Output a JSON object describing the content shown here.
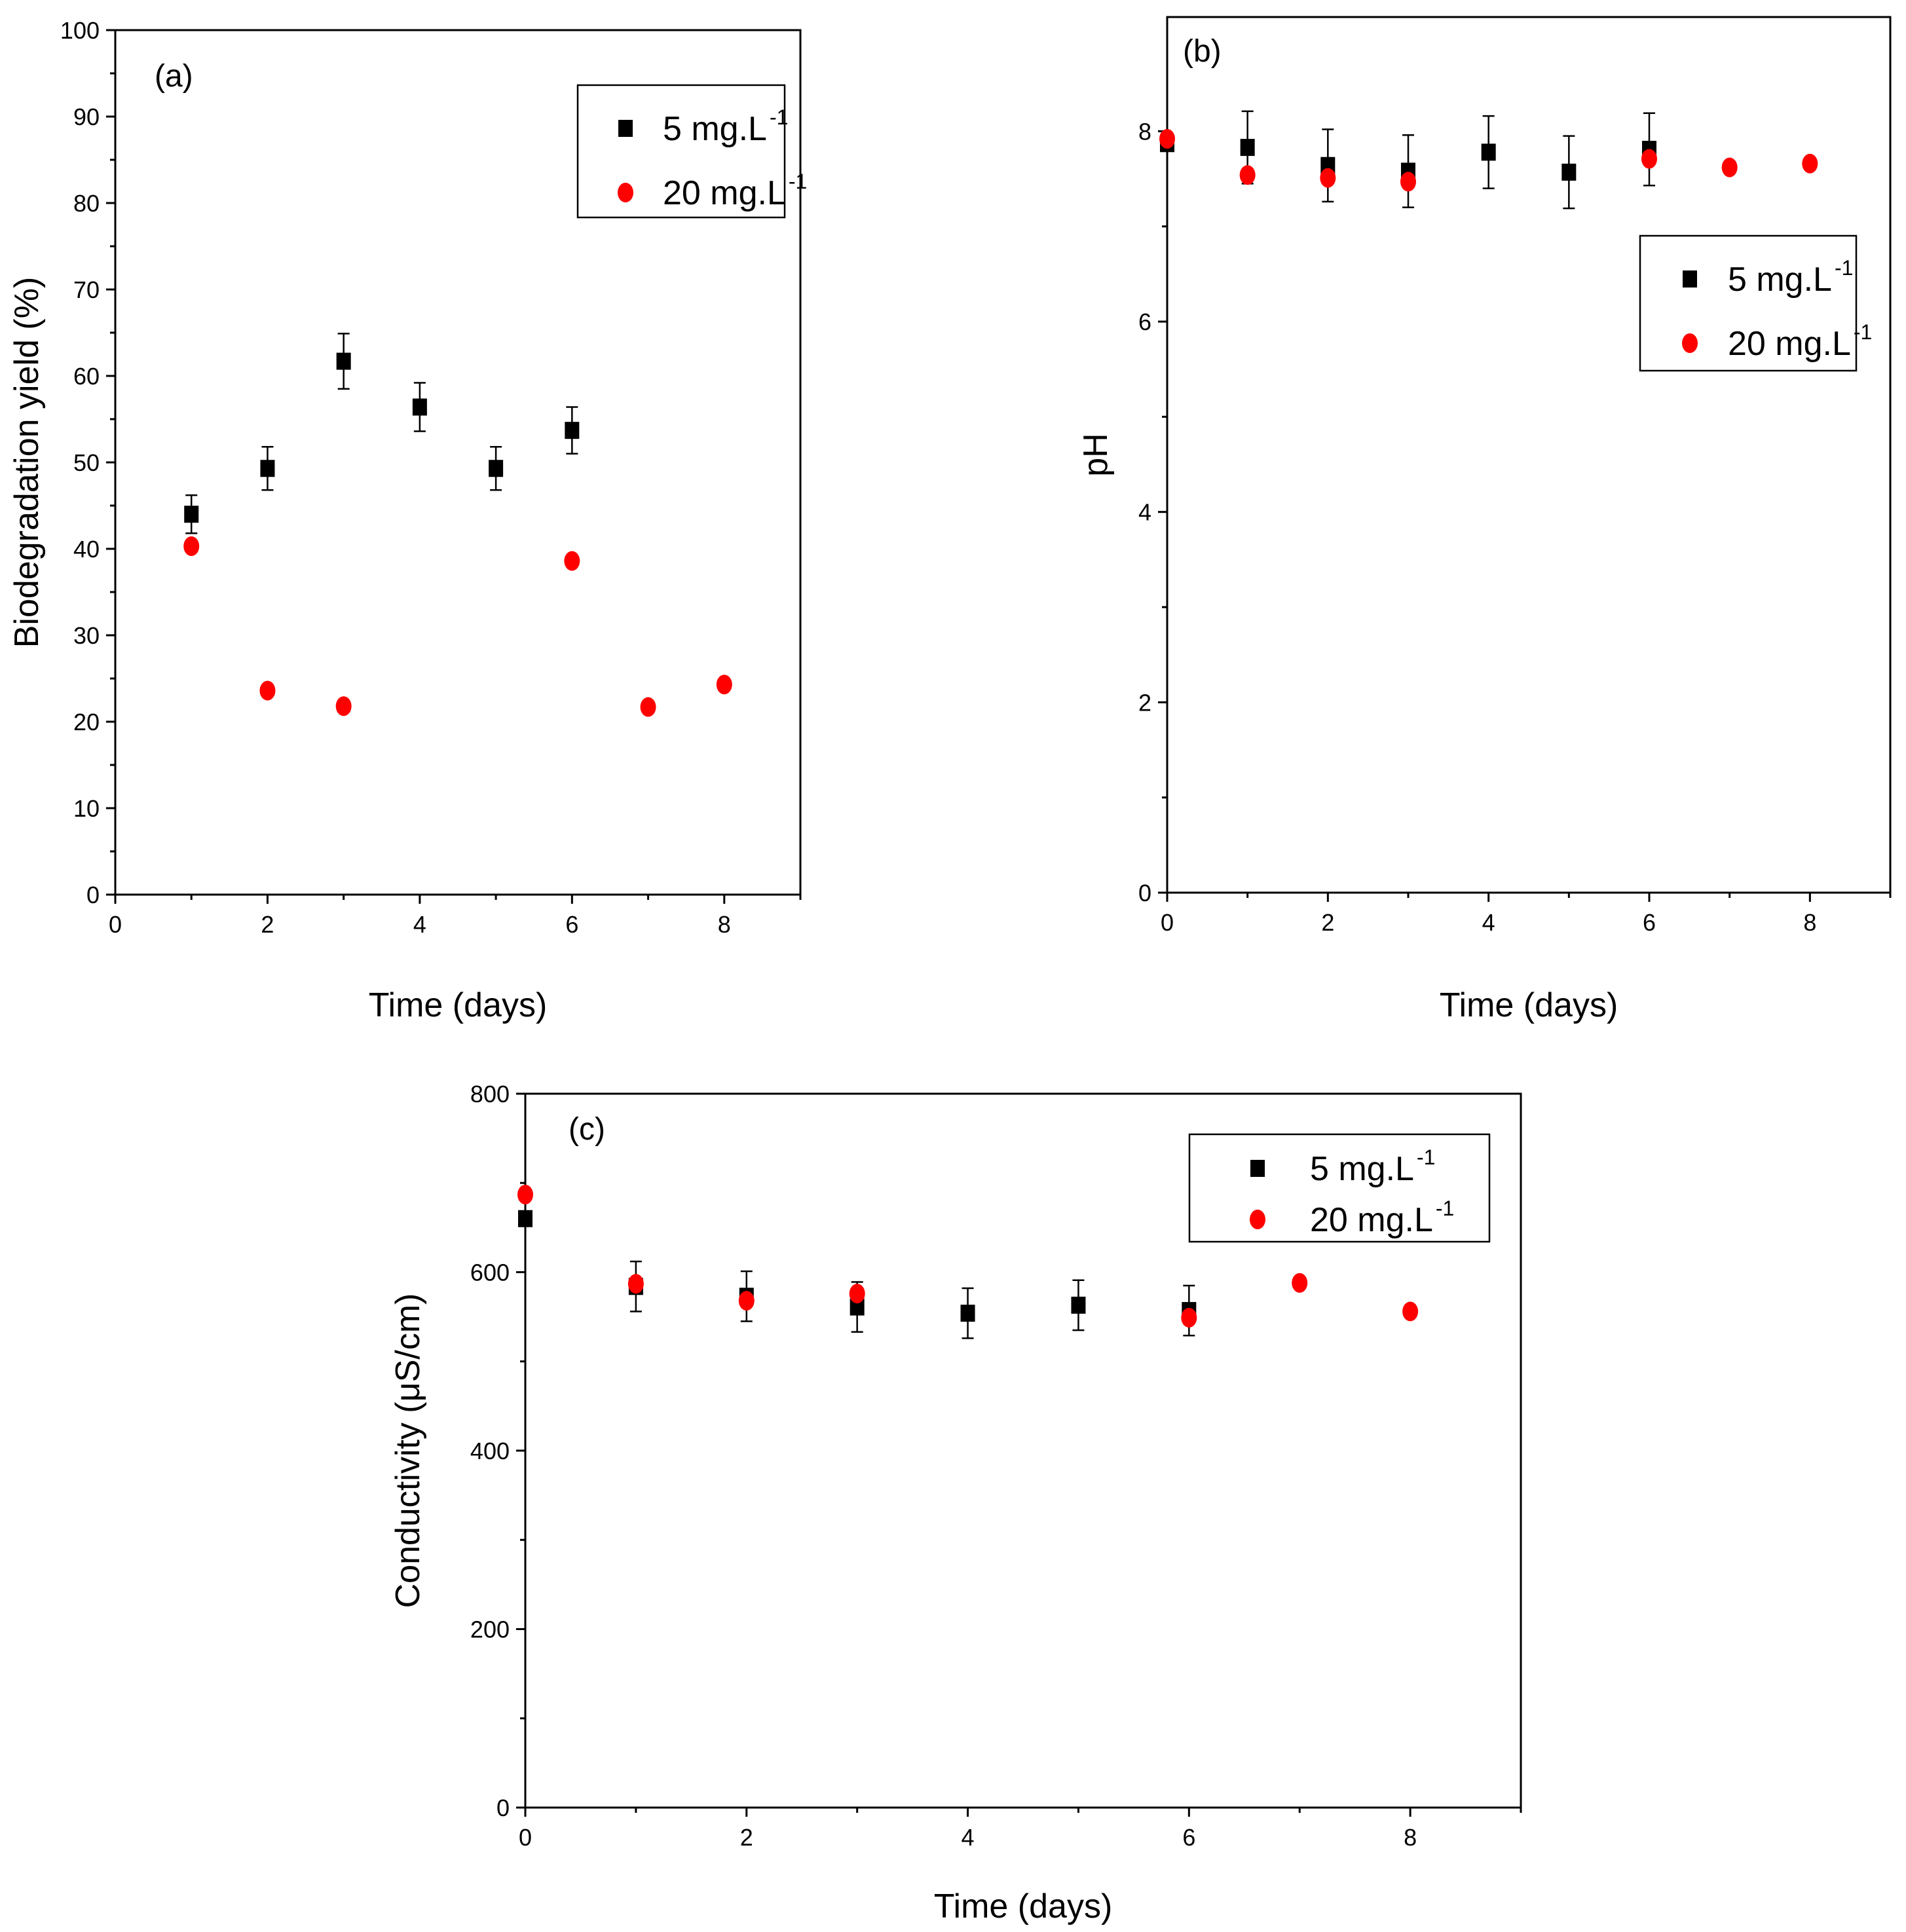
{
  "colors": {
    "series_square": "#000000",
    "series_circle": "#ff0000",
    "axis": "#000000",
    "background": "#ffffff"
  },
  "chart_data": [
    {
      "id": "a",
      "type": "scatter",
      "panel_label": "(a)",
      "xlabel": "Time (days)",
      "ylabel": "Biodegradation yield (%)",
      "xlim": [
        0,
        9
      ],
      "ylim": [
        0,
        100
      ],
      "xticks": [
        0,
        2,
        4,
        6,
        8
      ],
      "yticks": [
        0,
        10,
        20,
        30,
        40,
        50,
        60,
        70,
        80,
        90,
        100
      ],
      "legend_position": "top-right",
      "series": [
        {
          "name": "5 mg.L",
          "sup": "-1",
          "marker": "square",
          "x": [
            1,
            2,
            3,
            4,
            5,
            6
          ],
          "y": [
            44,
            49.3,
            61.7,
            56.4,
            49.3,
            53.7
          ],
          "err": [
            2.2,
            2.5,
            3.2,
            2.8,
            2.5,
            2.7
          ]
        },
        {
          "name": "20 mg.L",
          "sup": "-1",
          "marker": "circle",
          "x": [
            1,
            2,
            3,
            6,
            7,
            8
          ],
          "y": [
            40.3,
            23.6,
            21.8,
            38.6,
            21.7,
            24.3
          ],
          "err": [
            0,
            0,
            0,
            0,
            0,
            0
          ]
        }
      ]
    },
    {
      "id": "b",
      "type": "scatter",
      "panel_label": "(b)",
      "xlabel": "Time (days)",
      "ylabel": "pH",
      "xlim": [
        0,
        9
      ],
      "ylim": [
        0,
        9.2
      ],
      "xticks": [
        0,
        2,
        4,
        6,
        8
      ],
      "yticks": [
        0,
        2,
        4,
        6,
        8
      ],
      "legend_position": "upper-right",
      "series": [
        {
          "name": "5 mg.L",
          "sup": "-1",
          "marker": "square",
          "x": [
            0,
            1,
            2,
            3,
            4,
            5,
            6
          ],
          "y": [
            7.87,
            7.83,
            7.64,
            7.58,
            7.78,
            7.57,
            7.81
          ],
          "err": [
            0,
            0.38,
            0.38,
            0.38,
            0.38,
            0.38,
            0.38
          ]
        },
        {
          "name": "20 mg.L",
          "sup": "-1",
          "marker": "circle",
          "x": [
            0,
            1,
            2,
            3,
            6,
            7,
            8
          ],
          "y": [
            7.92,
            7.54,
            7.51,
            7.47,
            7.71,
            7.62,
            7.66
          ],
          "err": [
            0,
            0,
            0,
            0,
            0,
            0,
            0
          ]
        }
      ]
    },
    {
      "id": "c",
      "type": "scatter",
      "panel_label": "(c)",
      "xlabel": "Time (days)",
      "ylabel": "Conductivity (μS/cm)",
      "xlim": [
        0,
        9
      ],
      "ylim": [
        0,
        800
      ],
      "xticks": [
        0,
        2,
        4,
        6,
        8
      ],
      "yticks": [
        0,
        200,
        400,
        600,
        800
      ],
      "legend_position": "top-right",
      "series": [
        {
          "name": "5 mg.L",
          "sup": "-1",
          "marker": "square",
          "x": [
            0,
            1,
            2,
            3,
            4,
            5,
            6
          ],
          "y": [
            660,
            584,
            573,
            561,
            554,
            563,
            557
          ],
          "err": [
            0,
            28,
            28,
            28,
            28,
            28,
            28
          ]
        },
        {
          "name": "20 mg.L",
          "sup": "-1",
          "marker": "circle",
          "x": [
            0,
            1,
            2,
            3,
            6,
            7,
            8
          ],
          "y": [
            687,
            587,
            568,
            576,
            549,
            588,
            556
          ],
          "err": [
            0,
            0,
            0,
            0,
            0,
            0,
            0
          ]
        }
      ]
    }
  ]
}
